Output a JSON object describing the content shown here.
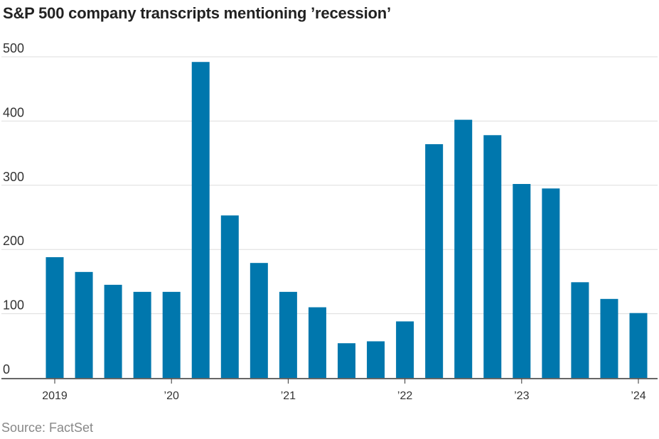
{
  "title": "S&P 500 company transcripts mentioning ’recession’",
  "source": "Source: FactSet",
  "chart_data": {
    "type": "bar",
    "title": "S&P 500 company transcripts mentioning ’recession’",
    "xlabel": "",
    "ylabel": "",
    "ylim": [
      0,
      500
    ],
    "yticks": [
      0,
      100,
      200,
      300,
      400,
      500
    ],
    "grid": true,
    "bar_color": "#0077ad",
    "x_tick_labels": [
      {
        "label": "2019",
        "index": 0
      },
      {
        "label": "’20",
        "index": 4
      },
      {
        "label": "’21",
        "index": 8
      },
      {
        "label": "’22",
        "index": 12
      },
      {
        "label": "’23",
        "index": 16
      },
      {
        "label": "’24",
        "index": 20
      }
    ],
    "values": [
      188,
      165,
      145,
      134,
      134,
      492,
      253,
      179,
      134,
      110,
      54,
      57,
      88,
      364,
      402,
      378,
      302,
      295,
      149,
      123,
      101
    ]
  }
}
